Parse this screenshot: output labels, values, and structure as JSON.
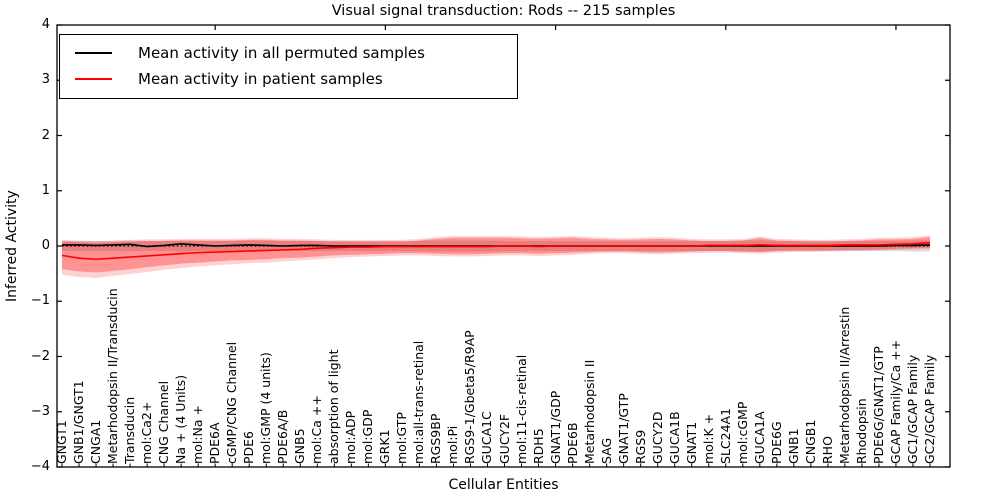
{
  "figure": {
    "title": "Visual signal transduction: Rods -- 215 samples",
    "xlabel": "Cellular Entities",
    "ylabel": "Inferred Activity"
  },
  "legend": {
    "entries": [
      {
        "label": "Mean activity in all permuted samples",
        "color": "#000000"
      },
      {
        "label": "Mean activity in patient samples",
        "color": "#ff0000"
      }
    ]
  },
  "chart_data": {
    "type": "line",
    "title": "Visual signal transduction: Rods -- 215 samples",
    "xlabel": "Cellular Entities",
    "ylabel": "Inferred Activity",
    "ylim": [
      -4,
      4
    ],
    "yticks": [
      -4,
      -3,
      -2,
      -1,
      0,
      1,
      2,
      3,
      4
    ],
    "grid": false,
    "zero_line_style": "dotted-black",
    "legend_position": "upper left",
    "categories": [
      "GNGT1",
      "GNB1/GNGT1",
      "CNGA1",
      "Metarhodopsin II/Transducin",
      "Transducin",
      "mol:Ca2+",
      "CNG Channel",
      "Na + (4 Units)",
      "mol:Na +",
      "PDE6A",
      "cGMP/CNG Channel",
      "PDE6",
      "mol:GMP (4 units)",
      "PDE6A/B",
      "GNB5",
      "mol:Ca ++",
      "absorption of light",
      "mol:ADP",
      "mol:GDP",
      "GRK1",
      "mol:GTP",
      "mol:all-trans-retinal",
      "RGS9BP",
      "mol:Pi",
      "RGS9-1/Gbeta5/R9AP",
      "GUCA1C",
      "GUCY2F",
      "mol:11-cis-retinal",
      "RDH5",
      "GNAT1/GDP",
      "PDE6B",
      "Metarhodopsin II",
      "SAG",
      "GNAT1/GTP",
      "RGS9",
      "GUCY2D",
      "GUCA1B",
      "GNAT1",
      "mol:K +",
      "SLC24A1",
      "mol:cGMP",
      "GUCA1A",
      "PDE6G",
      "GNB1",
      "CNGB1",
      "RHO",
      "Metarhodopsin II/Arrestin",
      "Rhodopsin",
      "PDE6G/GNAT1/GTP",
      "GCAP Family/Ca ++",
      "GC1/GCAP Family",
      "GC2/GCAP Family"
    ],
    "series": [
      {
        "name": "Mean activity in all permuted samples",
        "color": "#000000",
        "values": [
          0.02,
          0.02,
          0.01,
          0.02,
          0.03,
          -0.01,
          0.01,
          0.04,
          0.02,
          0.0,
          0.01,
          0.02,
          0.01,
          0.0,
          0.01,
          0.01,
          0.0,
          0.0,
          0.0,
          0.0,
          0.0,
          0.0,
          0.0,
          0.0,
          0.0,
          0.0,
          0.0,
          0.0,
          0.0,
          0.0,
          0.0,
          0.0,
          0.0,
          0.0,
          0.0,
          0.0,
          0.0,
          0.0,
          0.0,
          0.0,
          0.0,
          0.0,
          0.0,
          0.0,
          0.0,
          0.0,
          0.0,
          0.0,
          0.0,
          0.01,
          0.01,
          0.02
        ]
      },
      {
        "name": "Mean activity in patient samples",
        "color": "#ff0000",
        "values": [
          -0.17,
          -0.22,
          -0.24,
          -0.22,
          -0.2,
          -0.18,
          -0.16,
          -0.14,
          -0.12,
          -0.11,
          -0.1,
          -0.09,
          -0.08,
          -0.07,
          -0.06,
          -0.04,
          -0.03,
          -0.02,
          -0.02,
          -0.01,
          -0.01,
          -0.01,
          -0.01,
          -0.01,
          -0.01,
          -0.01,
          0.0,
          0.0,
          -0.01,
          0.0,
          0.0,
          0.0,
          0.0,
          0.0,
          0.0,
          0.0,
          0.0,
          0.0,
          0.01,
          0.01,
          0.01,
          0.02,
          0.01,
          0.01,
          0.01,
          0.01,
          0.02,
          0.02,
          0.02,
          0.03,
          0.04,
          0.06
        ]
      }
    ],
    "bands": [
      {
        "name": "permuted-samples-band",
        "color": "#000000",
        "opacity": 0.14,
        "hi": [
          0.09,
          0.09,
          0.09,
          0.09,
          0.1,
          0.09,
          0.09,
          0.1,
          0.09,
          0.09,
          0.09,
          0.1,
          0.09,
          0.09,
          0.09,
          0.09,
          0.09,
          0.09,
          0.09,
          0.09,
          0.09,
          0.09,
          0.1,
          0.1,
          0.1,
          0.1,
          0.09,
          0.09,
          0.09,
          0.09,
          0.09,
          0.09,
          0.09,
          0.09,
          0.09,
          0.09,
          0.09,
          0.09,
          0.09,
          0.09,
          0.1,
          0.1,
          0.09,
          0.09,
          0.09,
          0.09,
          0.09,
          0.09,
          0.09,
          0.09,
          0.1,
          0.1
        ],
        "lo": [
          -0.09,
          -0.09,
          -0.09,
          -0.09,
          -0.1,
          -0.09,
          -0.09,
          -0.1,
          -0.09,
          -0.09,
          -0.09,
          -0.1,
          -0.09,
          -0.09,
          -0.09,
          -0.09,
          -0.09,
          -0.09,
          -0.09,
          -0.09,
          -0.09,
          -0.09,
          -0.1,
          -0.1,
          -0.1,
          -0.1,
          -0.09,
          -0.09,
          -0.09,
          -0.09,
          -0.09,
          -0.09,
          -0.09,
          -0.09,
          -0.09,
          -0.09,
          -0.09,
          -0.09,
          -0.09,
          -0.09,
          -0.1,
          -0.1,
          -0.09,
          -0.09,
          -0.09,
          -0.09,
          -0.09,
          -0.09,
          -0.09,
          -0.09,
          -0.1,
          -0.1
        ]
      },
      {
        "name": "patient-samples-band-outer",
        "color": "#ff0000",
        "opacity": 0.18,
        "hi": [
          0.11,
          0.1,
          0.09,
          0.1,
          0.11,
          0.12,
          0.12,
          0.13,
          0.13,
          0.13,
          0.13,
          0.14,
          0.14,
          0.13,
          0.13,
          0.12,
          0.11,
          0.11,
          0.11,
          0.11,
          0.11,
          0.13,
          0.16,
          0.18,
          0.18,
          0.18,
          0.18,
          0.17,
          0.16,
          0.17,
          0.18,
          0.16,
          0.15,
          0.14,
          0.15,
          0.16,
          0.15,
          0.13,
          0.12,
          0.12,
          0.13,
          0.17,
          0.13,
          0.12,
          0.11,
          0.11,
          0.12,
          0.13,
          0.15,
          0.15,
          0.16,
          0.19
        ],
        "lo": [
          -0.52,
          -0.56,
          -0.58,
          -0.54,
          -0.51,
          -0.47,
          -0.43,
          -0.4,
          -0.37,
          -0.35,
          -0.33,
          -0.31,
          -0.3,
          -0.28,
          -0.26,
          -0.24,
          -0.22,
          -0.2,
          -0.19,
          -0.18,
          -0.17,
          -0.17,
          -0.18,
          -0.19,
          -0.19,
          -0.18,
          -0.17,
          -0.17,
          -0.18,
          -0.17,
          -0.16,
          -0.14,
          -0.13,
          -0.13,
          -0.14,
          -0.15,
          -0.14,
          -0.13,
          -0.12,
          -0.12,
          -0.13,
          -0.14,
          -0.12,
          -0.11,
          -0.11,
          -0.1,
          -0.09,
          -0.09,
          -0.08,
          -0.07,
          -0.06,
          -0.05
        ]
      },
      {
        "name": "patient-samples-band-inner",
        "color": "#ff0000",
        "opacity": 0.3,
        "hi": [
          0.08,
          0.07,
          0.06,
          0.07,
          0.08,
          0.09,
          0.09,
          0.1,
          0.1,
          0.1,
          0.1,
          0.11,
          0.11,
          0.1,
          0.1,
          0.09,
          0.08,
          0.08,
          0.08,
          0.08,
          0.08,
          0.1,
          0.13,
          0.15,
          0.15,
          0.15,
          0.15,
          0.14,
          0.13,
          0.14,
          0.15,
          0.13,
          0.12,
          0.11,
          0.12,
          0.13,
          0.12,
          0.1,
          0.09,
          0.09,
          0.1,
          0.14,
          0.1,
          0.09,
          0.08,
          0.08,
          0.09,
          0.1,
          0.12,
          0.12,
          0.13,
          0.16
        ],
        "lo": [
          -0.42,
          -0.46,
          -0.48,
          -0.45,
          -0.42,
          -0.38,
          -0.35,
          -0.32,
          -0.3,
          -0.28,
          -0.26,
          -0.25,
          -0.24,
          -0.22,
          -0.21,
          -0.19,
          -0.17,
          -0.16,
          -0.15,
          -0.14,
          -0.13,
          -0.13,
          -0.14,
          -0.15,
          -0.15,
          -0.14,
          -0.13,
          -0.13,
          -0.14,
          -0.13,
          -0.12,
          -0.11,
          -0.1,
          -0.1,
          -0.11,
          -0.12,
          -0.11,
          -0.1,
          -0.09,
          -0.09,
          -0.1,
          -0.11,
          -0.09,
          -0.08,
          -0.08,
          -0.08,
          -0.07,
          -0.07,
          -0.06,
          -0.05,
          -0.04,
          -0.03
        ]
      }
    ],
    "top_axis_tick_indices": [
      9,
      19,
      29,
      39,
      49
    ]
  }
}
